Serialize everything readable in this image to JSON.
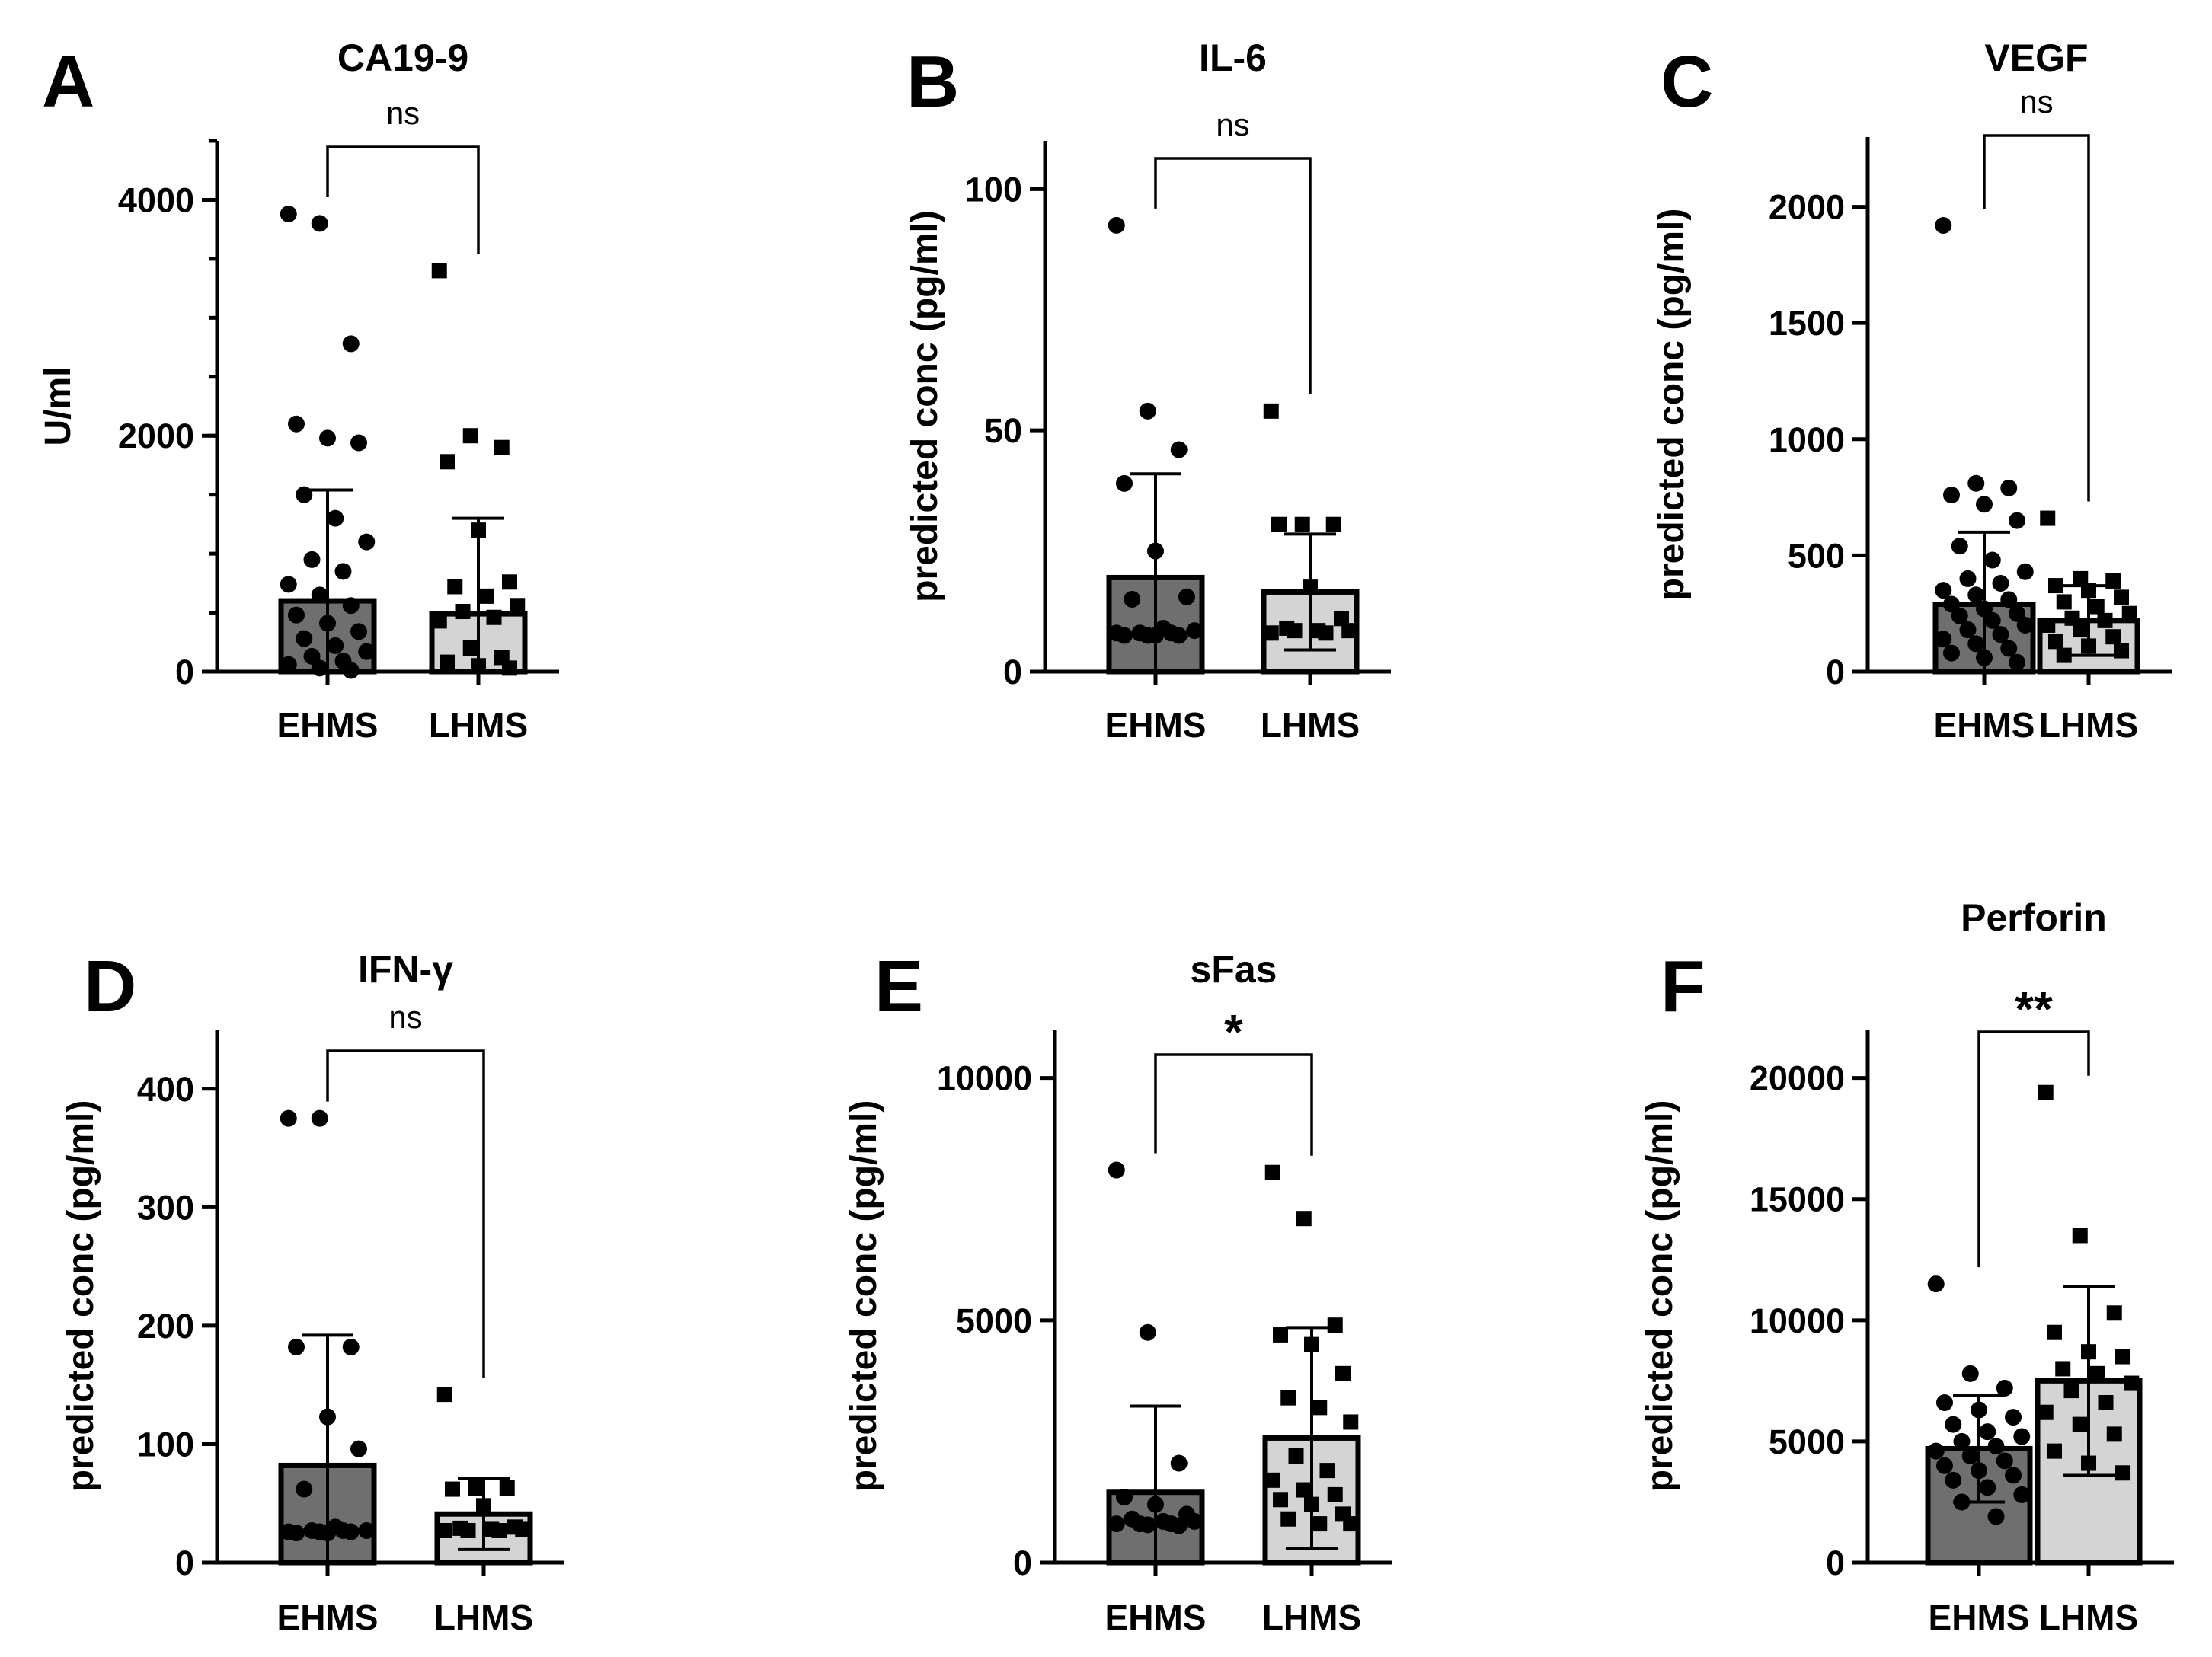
{
  "chart_data": [
    {
      "panel": "A",
      "title": "CA19-9",
      "type": "bar",
      "ylabel": "U/ml",
      "ylim": [
        0,
        4500
      ],
      "yticks": [
        0,
        2000,
        4000
      ],
      "minor_step": 500,
      "categories": [
        "EHMS",
        "LHMS"
      ],
      "significance": "ns",
      "sig_style": "ns",
      "series": [
        {
          "name": "EHMS",
          "mean": 600,
          "sd": 940,
          "color": "#6f6f6f",
          "marker": "circle",
          "points": [
            3880,
            3800,
            2780,
            2100,
            1980,
            1940,
            1500,
            1300,
            1100,
            950,
            850,
            740,
            650,
            560,
            480,
            410,
            340,
            280,
            220,
            170,
            130,
            90,
            60,
            30,
            10
          ]
        },
        {
          "name": "LHMS",
          "mean": 490,
          "sd": 810,
          "color": "#d4d4d4",
          "marker": "square",
          "points": [
            3400,
            2000,
            1900,
            1780,
            1200,
            760,
            720,
            640,
            560,
            510,
            460,
            430,
            200,
            120,
            80,
            50,
            30
          ]
        }
      ]
    },
    {
      "panel": "B",
      "title": "IL-6",
      "type": "bar",
      "ylabel": "predicted conc (pg/ml)",
      "ylim": [
        0,
        110
      ],
      "yticks": [
        0,
        50,
        100
      ],
      "minor_step": null,
      "categories": [
        "EHMS",
        "LHMS"
      ],
      "significance": "ns",
      "sig_style": "ns",
      "series": [
        {
          "name": "EHMS",
          "mean": 19.5,
          "sd": 21.5,
          "color": "#6f6f6f",
          "marker": "circle",
          "points": [
            92.5,
            54,
            46,
            39,
            25,
            15.5,
            15,
            9,
            8.5,
            8,
            8,
            8,
            7.5,
            7.5,
            7.5,
            7.5
          ]
        },
        {
          "name": "LHMS",
          "mean": 16.5,
          "sd": 12,
          "color": "#d4d4d4",
          "marker": "square",
          "points": [
            54,
            30.5,
            30.5,
            30.5,
            17.5,
            11,
            9,
            8.5,
            8.5,
            8.5,
            8,
            8
          ]
        }
      ]
    },
    {
      "panel": "C",
      "title": "VEGF",
      "type": "bar",
      "ylabel": "predicted conc (pg/ml)",
      "ylim": [
        0,
        2300
      ],
      "yticks": [
        0,
        500,
        1000,
        1500,
        2000
      ],
      "minor_step": null,
      "categories": [
        "EHMS",
        "LHMS"
      ],
      "significance": "ns",
      "sig_style": "ns",
      "series": [
        {
          "name": "EHMS",
          "mean": 290,
          "sd": 310,
          "color": "#6f6f6f",
          "marker": "circle",
          "points": [
            1920,
            810,
            790,
            760,
            720,
            650,
            540,
            480,
            430,
            400,
            380,
            350,
            330,
            310,
            290,
            270,
            250,
            240,
            220,
            200,
            180,
            160,
            140,
            120,
            100,
            80,
            60,
            40
          ]
        },
        {
          "name": "LHMS",
          "mean": 220,
          "sd": 150,
          "color": "#d4d4d4",
          "marker": "square",
          "points": [
            660,
            400,
            390,
            370,
            350,
            320,
            300,
            280,
            250,
            230,
            220,
            200,
            180,
            150,
            130,
            110,
            90,
            70
          ]
        }
      ]
    },
    {
      "panel": "D",
      "title": "IFN-γ",
      "type": "bar",
      "ylabel": "predicted conc (pg/ml)",
      "ylim": [
        0,
        450
      ],
      "yticks": [
        0,
        100,
        200,
        300,
        400
      ],
      "minor_step": null,
      "categories": [
        "EHMS",
        "LHMS"
      ],
      "significance": "ns",
      "sig_style": "ns",
      "series": [
        {
          "name": "EHMS",
          "mean": 82,
          "sd": 110,
          "color": "#6f6f6f",
          "marker": "circle",
          "points": [
            375,
            375,
            182,
            182,
            123,
            96,
            62,
            30,
            27,
            27,
            27,
            26,
            26,
            26,
            25,
            25
          ]
        },
        {
          "name": "LHMS",
          "mean": 41,
          "sd": 30,
          "color": "#d4d4d4",
          "marker": "square",
          "points": [
            142,
            63,
            63,
            62,
            48,
            30,
            29,
            28,
            28,
            27,
            27,
            27
          ]
        }
      ]
    },
    {
      "panel": "E",
      "title": "sFas",
      "type": "bar",
      "ylabel": "predicted conc (pg/ml)",
      "ylim": [
        0,
        11000
      ],
      "yticks": [
        0,
        5000,
        10000
      ],
      "minor_step": null,
      "categories": [
        "EHMS",
        "LHMS"
      ],
      "significance": "*",
      "sig_style": "star",
      "series": [
        {
          "name": "EHMS",
          "mean": 1450,
          "sd": 1780,
          "color": "#6f6f6f",
          "marker": "circle",
          "points": [
            8100,
            4750,
            2050,
            1350,
            1200,
            1000,
            900,
            850,
            850,
            800,
            800,
            800,
            780,
            760
          ]
        },
        {
          "name": "LHMS",
          "mean": 2570,
          "sd": 2280,
          "color": "#d4d4d4",
          "marker": "square",
          "points": [
            8050,
            7100,
            4900,
            4700,
            4500,
            3900,
            3400,
            3200,
            2900,
            2200,
            1900,
            1700,
            1500,
            1400,
            1300,
            1200,
            1000,
            900,
            800,
            800
          ]
        }
      ]
    },
    {
      "panel": "F",
      "title": "Perforin",
      "type": "bar",
      "ylabel": "predicted conc (pg/ml)",
      "ylim": [
        0,
        22000
      ],
      "yticks": [
        0,
        5000,
        10000,
        15000,
        20000
      ],
      "minor_step": null,
      "categories": [
        "EHMS",
        "LHMS"
      ],
      "significance": "**",
      "sig_style": "star",
      "series": [
        {
          "name": "EHMS",
          "mean": 4700,
          "sd": 2200,
          "color": "#6f6f6f",
          "marker": "circle",
          "points": [
            11500,
            7800,
            7200,
            6600,
            6300,
            6000,
            5700,
            5400,
            5200,
            5000,
            4800,
            4600,
            4400,
            4200,
            4000,
            3800,
            3600,
            3400,
            3100,
            2800,
            2500,
            1900
          ]
        },
        {
          "name": "LHMS",
          "mean": 7500,
          "sd": 3900,
          "color": "#d4d4d4",
          "marker": "square",
          "points": [
            19400,
            13500,
            10300,
            9500,
            8700,
            8500,
            8000,
            7800,
            7400,
            7100,
            6600,
            6200,
            5700,
            5300,
            4600,
            4100,
            3700
          ]
        }
      ]
    }
  ]
}
